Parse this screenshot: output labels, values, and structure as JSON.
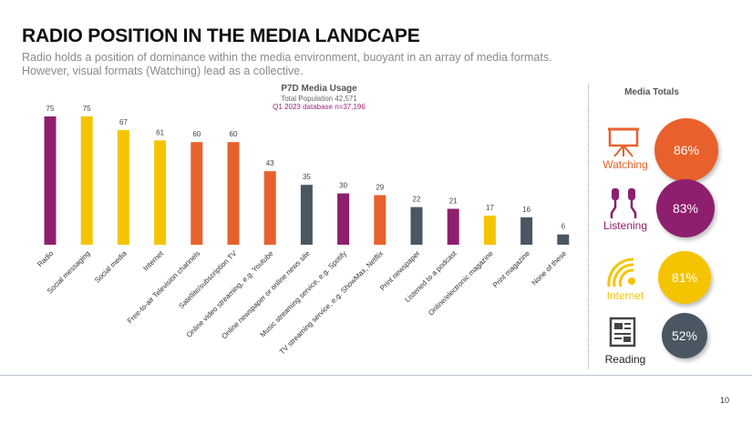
{
  "title": "RADIO POSITION IN THE MEDIA LANDCAPE",
  "subtitle": "Radio holds a position of dominance within the media environment, buoyant in an array of media formats. However, visual formats (Watching) lead as a collective.",
  "chart_data": {
    "type": "bar",
    "title": "P7D Media Usage",
    "subtitle_lines": [
      "Total Population 42,571",
      "Q1 2023 database n=37,196"
    ],
    "categories": [
      "Radio",
      "Social messaging",
      "Social media",
      "Internet",
      "Free-to-air Television channels",
      "Satellite/subscription TV",
      "Online video streaming, e.g. Youtube",
      "Online newspaper or online news site",
      "Music streaming service, e.g. Spotify",
      "TV streaming service, e.g. ShowMax, Netflix",
      "Print newspaper",
      "Listened to a podcast",
      "Online/electronic magazine",
      "Print magazine",
      "None of these"
    ],
    "values": [
      75,
      75,
      67,
      61,
      60,
      60,
      43,
      35,
      30,
      29,
      22,
      21,
      17,
      16,
      6
    ],
    "colors": [
      "#8e1f6e",
      "#f5c400",
      "#f5c400",
      "#f5c400",
      "#e8612c",
      "#e8612c",
      "#e8612c",
      "#4a5763",
      "#8e1f6e",
      "#e8612c",
      "#4a5763",
      "#8e1f6e",
      "#f5c400",
      "#4a5763",
      "#4a5763"
    ],
    "ylim": [
      0,
      80
    ],
    "grid": false,
    "data_labels": true
  },
  "totals": {
    "title": "Media Totals",
    "items": [
      {
        "label": "Watching",
        "value": "86%",
        "color": "#e8612c",
        "icon": "projector-screen-icon"
      },
      {
        "label": "Listening",
        "value": "83%",
        "color": "#8e1f6e",
        "icon": "earphones-icon"
      },
      {
        "label": "Internet",
        "value": "81%",
        "color": "#f5c400",
        "icon": "wifi-icon"
      },
      {
        "label": "Reading",
        "value": "52%",
        "color": "#4a5763",
        "icon": "newspaper-icon"
      }
    ]
  },
  "page_number": "10"
}
